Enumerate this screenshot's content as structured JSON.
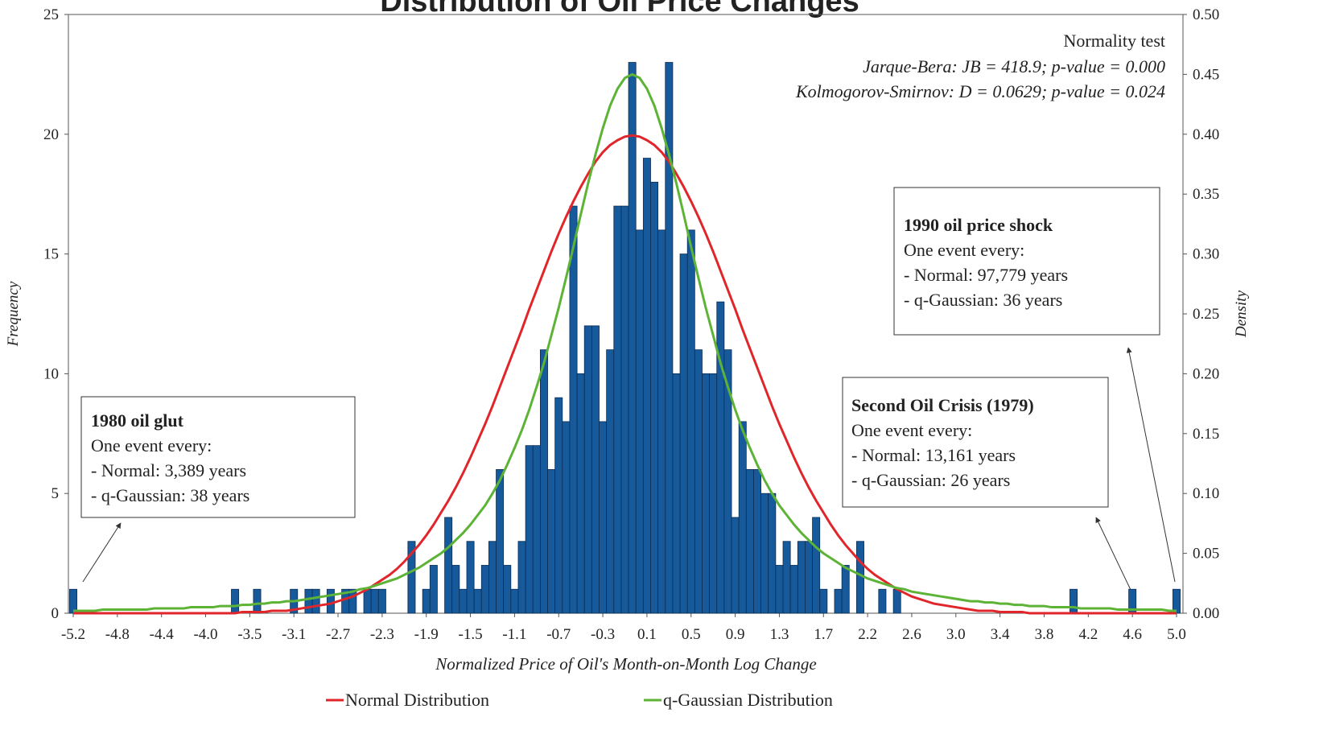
{
  "chart_data": {
    "type": "bar",
    "title": "Distribution of Oil Price Changes",
    "xlabel": "Normalized Price of  Oil's Month-on-Month Log Change",
    "ylabel": "Frequency",
    "y2label": "Density",
    "categories": [
      "-5.2",
      null,
      null,
      null,
      null,
      null,
      "-4.8",
      null,
      null,
      null,
      null,
      null,
      "-4.4",
      null,
      null,
      null,
      null,
      null,
      "-4.0",
      null,
      null,
      null,
      null,
      null,
      "-3.5",
      null,
      null,
      null,
      null,
      null,
      "-3.1",
      null,
      null,
      null,
      null,
      null,
      "-2.7",
      null,
      null,
      null,
      null,
      null,
      "-2.3",
      null,
      null,
      null,
      null,
      null,
      "-1.9",
      null,
      null,
      null,
      null,
      null,
      "-1.5",
      null,
      null,
      null,
      null,
      null,
      "-1.1",
      null,
      null,
      null,
      null,
      null,
      "-0.7",
      null,
      null,
      null,
      null,
      null,
      "-0.3",
      null,
      null,
      null,
      null,
      null,
      "0.1",
      null,
      null,
      null,
      null,
      null,
      "0.5",
      null,
      null,
      null,
      null,
      null,
      "0.9",
      null,
      null,
      null,
      null,
      null,
      "1.3",
      null,
      null,
      null,
      null,
      null,
      "1.7",
      null,
      null,
      null,
      null,
      null,
      "2.2",
      null,
      null,
      null,
      null,
      null,
      "2.6",
      null,
      null,
      null,
      null,
      null,
      "3.0",
      null,
      null,
      null,
      null,
      null,
      "3.4",
      null,
      null,
      null,
      null,
      null,
      "3.8",
      null,
      null,
      null,
      null,
      null,
      "4.2",
      null,
      null,
      null,
      null,
      null,
      "4.6",
      null,
      null,
      null,
      null,
      null,
      "5.0"
    ],
    "values": [
      1,
      0,
      0,
      0,
      0,
      0,
      0,
      0,
      0,
      0,
      0,
      0,
      0,
      0,
      0,
      0,
      0,
      0,
      0,
      0,
      0,
      0,
      1,
      0,
      0,
      1,
      0,
      0,
      0,
      0,
      1,
      0,
      1,
      1,
      0,
      1,
      0,
      1,
      1,
      0,
      1,
      1,
      1,
      0,
      0,
      0,
      3,
      0,
      1,
      2,
      0,
      4,
      2,
      1,
      3,
      1,
      2,
      3,
      6,
      2,
      1,
      3,
      7,
      7,
      11,
      6,
      9,
      8,
      17,
      10,
      12,
      12,
      8,
      11,
      17,
      17,
      23,
      16,
      19,
      18,
      16,
      23,
      10,
      15,
      16,
      11,
      10,
      10,
      13,
      11,
      4,
      8,
      6,
      6,
      5,
      5,
      2,
      3,
      2,
      3,
      3,
      4,
      1,
      0,
      1,
      2,
      0,
      3,
      0,
      0,
      1,
      0,
      1,
      0,
      0,
      0,
      0,
      0,
      0,
      0,
      0,
      0,
      0,
      0,
      0,
      0,
      0,
      0,
      0,
      0,
      0,
      0,
      0,
      0,
      0,
      0,
      1,
      0,
      0,
      0,
      0,
      0,
      0,
      0,
      1,
      0,
      0,
      0,
      0,
      0,
      1
    ],
    "color": "#175a9c",
    "series": [
      {
        "name": "Normal Distribution",
        "color": "#e0262b",
        "axis": "y2",
        "values": [
          0,
          0,
          0,
          0,
          0,
          0,
          0,
          0,
          0,
          0,
          0,
          0,
          0,
          0,
          0,
          0,
          0,
          0,
          0,
          0,
          0,
          0,
          0,
          0.001,
          0.001,
          0.001,
          0.001,
          0.002,
          0.002,
          0.002,
          0.003,
          0.004,
          0.005,
          0.006,
          0.007,
          0.008,
          0.01,
          0.012,
          0.014,
          0.017,
          0.02,
          0.024,
          0.028,
          0.032,
          0.037,
          0.043,
          0.05,
          0.057,
          0.065,
          0.074,
          0.084,
          0.094,
          0.105,
          0.117,
          0.13,
          0.144,
          0.158,
          0.173,
          0.189,
          0.205,
          0.221,
          0.237,
          0.254,
          0.27,
          0.286,
          0.302,
          0.317,
          0.331,
          0.344,
          0.356,
          0.367,
          0.377,
          0.385,
          0.391,
          0.395,
          0.398,
          0.399,
          0.398,
          0.395,
          0.391,
          0.385,
          0.377,
          0.367,
          0.356,
          0.344,
          0.331,
          0.317,
          0.302,
          0.286,
          0.27,
          0.254,
          0.237,
          0.221,
          0.205,
          0.189,
          0.173,
          0.158,
          0.144,
          0.13,
          0.117,
          0.105,
          0.094,
          0.084,
          0.074,
          0.065,
          0.057,
          0.05,
          0.043,
          0.037,
          0.032,
          0.028,
          0.024,
          0.02,
          0.017,
          0.014,
          0.012,
          0.01,
          0.008,
          0.007,
          0.006,
          0.005,
          0.004,
          0.003,
          0.002,
          0.002,
          0.002,
          0.001,
          0.001,
          0.001,
          0.001,
          0,
          0,
          0,
          0,
          0,
          0,
          0,
          0,
          0,
          0,
          0,
          0,
          0,
          0,
          0,
          0,
          0,
          0,
          0,
          0,
          0
        ]
      },
      {
        "name": "q-Gaussian Distribution",
        "color": "#5db336",
        "axis": "y2",
        "values": [
          0.002,
          0.002,
          0.002,
          0.002,
          0.003,
          0.003,
          0.003,
          0.003,
          0.003,
          0.003,
          0.003,
          0.004,
          0.004,
          0.004,
          0.004,
          0.004,
          0.005,
          0.005,
          0.005,
          0.005,
          0.006,
          0.006,
          0.006,
          0.007,
          0.007,
          0.008,
          0.008,
          0.009,
          0.009,
          0.01,
          0.01,
          0.011,
          0.012,
          0.013,
          0.014,
          0.015,
          0.016,
          0.017,
          0.018,
          0.02,
          0.021,
          0.023,
          0.025,
          0.027,
          0.029,
          0.032,
          0.035,
          0.038,
          0.042,
          0.046,
          0.05,
          0.055,
          0.061,
          0.067,
          0.074,
          0.082,
          0.09,
          0.1,
          0.111,
          0.124,
          0.138,
          0.153,
          0.17,
          0.189,
          0.209,
          0.232,
          0.255,
          0.28,
          0.306,
          0.333,
          0.359,
          0.383,
          0.405,
          0.424,
          0.438,
          0.447,
          0.45,
          0.447,
          0.438,
          0.424,
          0.405,
          0.383,
          0.359,
          0.333,
          0.306,
          0.28,
          0.255,
          0.232,
          0.209,
          0.189,
          0.17,
          0.153,
          0.138,
          0.124,
          0.111,
          0.1,
          0.09,
          0.082,
          0.074,
          0.067,
          0.061,
          0.055,
          0.05,
          0.046,
          0.042,
          0.038,
          0.035,
          0.032,
          0.029,
          0.027,
          0.025,
          0.023,
          0.021,
          0.02,
          0.018,
          0.017,
          0.016,
          0.015,
          0.014,
          0.013,
          0.012,
          0.011,
          0.01,
          0.01,
          0.009,
          0.009,
          0.008,
          0.008,
          0.007,
          0.007,
          0.006,
          0.006,
          0.006,
          0.005,
          0.005,
          0.005,
          0.005,
          0.004,
          0.004,
          0.004,
          0.004,
          0.004,
          0.003,
          0.003,
          0.003,
          0.003,
          0.003,
          0.003,
          0.003,
          0.002,
          0.002
        ]
      }
    ],
    "ylim": [
      0,
      25
    ],
    "yticks": [
      0,
      5,
      10,
      15,
      20,
      25
    ],
    "y2lim": [
      0,
      0.5
    ],
    "y2ticks": [
      {
        "value": 0,
        "label": "0.00"
      },
      {
        "value": 0.05,
        "label": "0.05"
      },
      {
        "value": 0.1,
        "label": "0.10"
      },
      {
        "value": 0.15,
        "label": "0.15"
      },
      {
        "value": 0.2,
        "label": "0.20"
      },
      {
        "value": 0.25,
        "label": "0.25"
      },
      {
        "value": 0.3,
        "label": "0.30"
      },
      {
        "value": 0.35,
        "label": "0.35"
      },
      {
        "value": 0.4,
        "label": "0.40"
      },
      {
        "value": 0.45,
        "label": "0.45"
      },
      {
        "value": 0.5,
        "label": "0.50"
      }
    ],
    "grid": false,
    "legend": "bottom",
    "normality_test": {
      "title": "Normality test",
      "lines": [
        "Jarque-Bera: JB = 418.9; p-value = 0.000",
        "Kolmogorov-Smirnov: D = 0.0629; p-value = 0.024"
      ]
    },
    "annotations": [
      {
        "title": "1980 oil glut",
        "lines": [
          "One event every:",
          "- Normal: 3,389 years",
          "- q-Gaussian: 38 years"
        ]
      },
      {
        "title": "1990 oil price shock",
        "lines": [
          "One event every:",
          "- Normal: 97,779 years",
          "- q-Gaussian: 36 years"
        ]
      },
      {
        "title": "Second Oil Crisis (1979)",
        "lines": [
          "One event every:",
          "- Normal: 13,161 years",
          "- q-Gaussian: 26 years"
        ]
      }
    ]
  }
}
